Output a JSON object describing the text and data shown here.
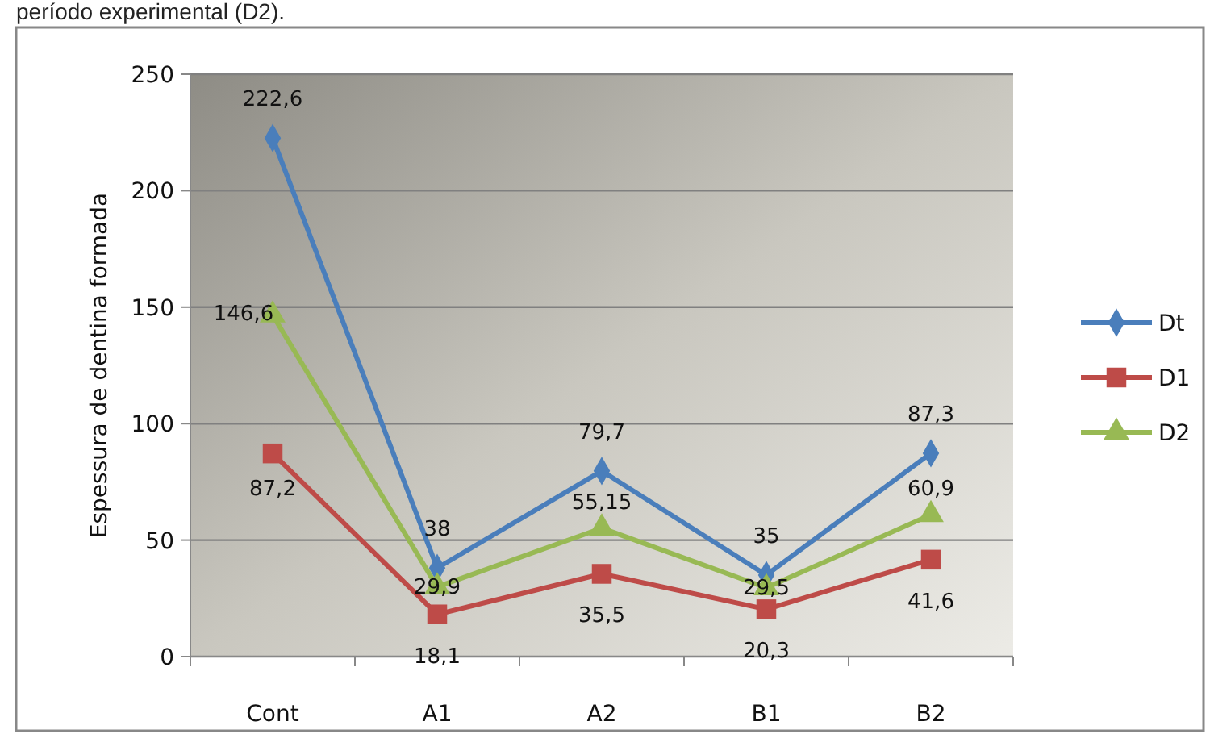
{
  "chart_data": {
    "type": "line",
    "ylabel": "Espessura de dentina formada",
    "annotations": [
      "período experimental (D2)."
    ],
    "categories": [
      "Cont",
      "A1",
      "A2",
      "B1",
      "B2"
    ],
    "ylim": [
      0,
      250
    ],
    "yticks": [
      0,
      50,
      100,
      150,
      200,
      250
    ],
    "grid": "y",
    "legend": "right",
    "series": [
      {
        "name": "Dt",
        "color": "#4a7ebb",
        "marker": "diamond",
        "values": [
          222.6,
          38,
          79.7,
          35,
          87.3
        ],
        "value_labels": [
          "222,6",
          "38",
          "79,7",
          "35",
          "87,3"
        ]
      },
      {
        "name": "D1",
        "color": "#be4b48",
        "marker": "square",
        "values": [
          87.2,
          18.1,
          35.5,
          20.3,
          41.6
        ],
        "value_labels": [
          "87,2",
          "18,1",
          "35,5",
          "20,3",
          "41,6"
        ]
      },
      {
        "name": "D2",
        "color": "#98b954",
        "marker": "triangle",
        "values": [
          146.6,
          29.9,
          55.15,
          29.5,
          60.9
        ],
        "value_labels": [
          "146,6",
          "29,9",
          "55,15",
          "29,5",
          "60,9"
        ]
      }
    ]
  }
}
